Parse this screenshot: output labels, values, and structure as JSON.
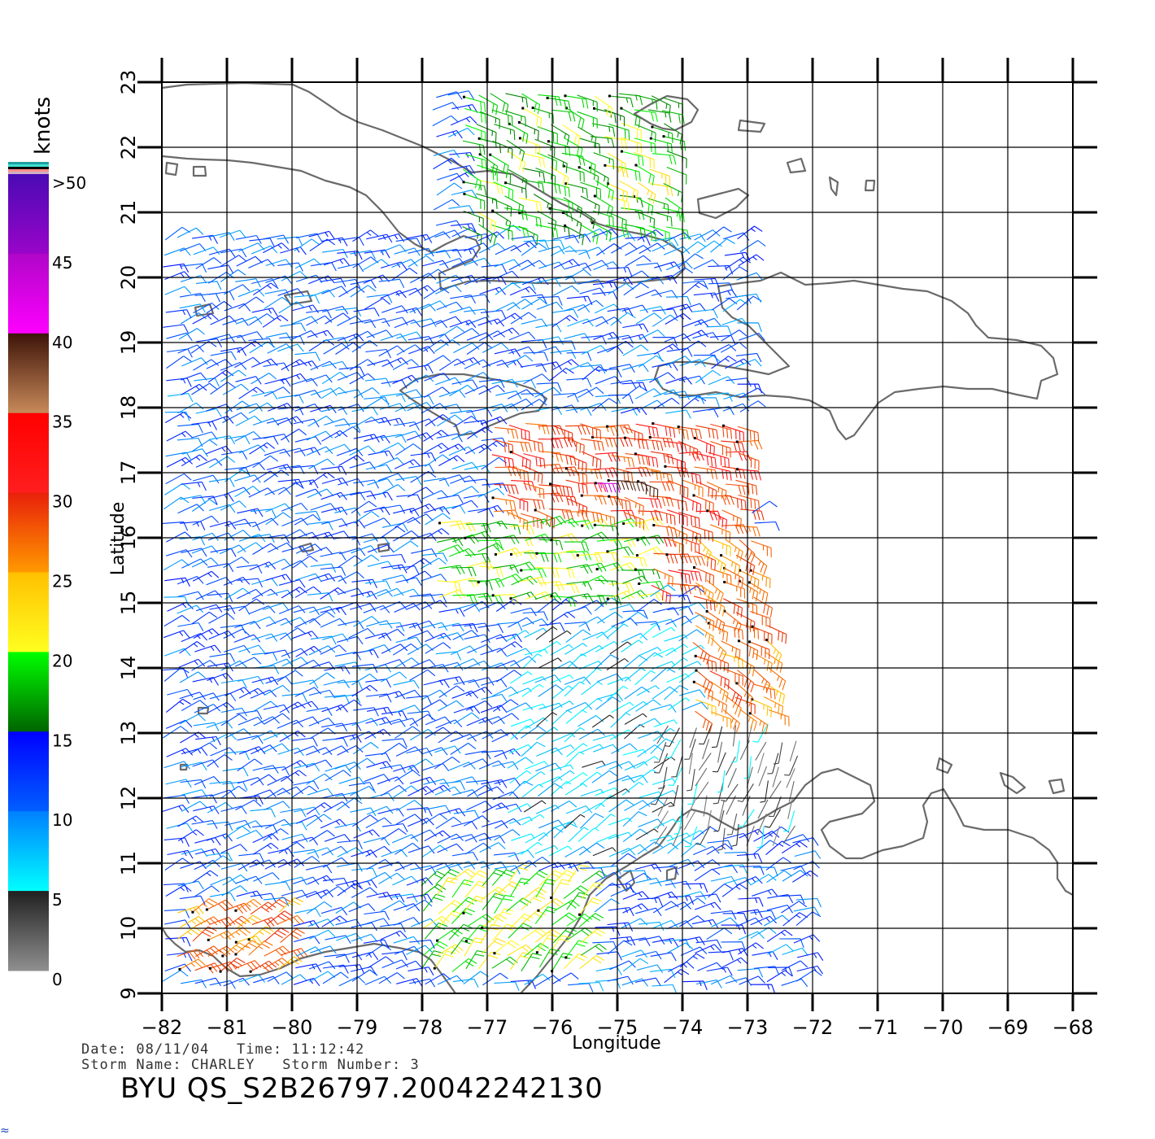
{
  "chart_data": {
    "type": "wind-barb-map",
    "xlabel": "Longitude",
    "ylabel": "Latitude",
    "xlim": [
      -82,
      -68
    ],
    "ylim": [
      9,
      23
    ],
    "x_ticks": [
      "−82",
      "−81",
      "−80",
      "−79",
      "−78",
      "−77",
      "−76",
      "−75",
      "−74",
      "−73",
      "−72",
      "−71",
      "−70",
      "−69",
      "−68"
    ],
    "y_ticks": [
      "9",
      "10",
      "11",
      "12",
      "13",
      "14",
      "15",
      "16",
      "17",
      "18",
      "19",
      "20",
      "21",
      "22",
      "23"
    ],
    "grid": true,
    "colorbar": {
      "unit": "knots",
      "labels": [
        ">50",
        "45",
        "40",
        "35",
        "30",
        "25",
        "20",
        "15",
        "10",
        "5",
        "0"
      ],
      "bands": [
        {
          "from": 45,
          "to": 50,
          "top": "#4a0ab5",
          "bottom": "#9a05c8"
        },
        {
          "from": 40,
          "to": 45,
          "top": "#b006c8",
          "bottom": "#ff00ff"
        },
        {
          "from": 35,
          "to": 40,
          "top": "#3d1408",
          "bottom": "#c98a5a"
        },
        {
          "from": 30,
          "to": 35,
          "top": "#ff0000",
          "bottom": "#ff1e1e"
        },
        {
          "from": 25,
          "to": 30,
          "top": "#e8200a",
          "bottom": "#ff9a00"
        },
        {
          "from": 20,
          "to": 25,
          "top": "#ffc000",
          "bottom": "#ffff20"
        },
        {
          "from": 15,
          "to": 20,
          "top": "#00ff00",
          "bottom": "#006400"
        },
        {
          "from": 10,
          "to": 15,
          "top": "#0000ff",
          "bottom": "#0060ff"
        },
        {
          "from": 5,
          "to": 10,
          "top": "#0080ff",
          "bottom": "#00ffff"
        },
        {
          "from": 0,
          "to": 5,
          "top": "#202020",
          "bottom": "#909090"
        }
      ],
      "top_stripes": [
        "#1fa0a0",
        "#40e0d0",
        "#000000",
        "#ff9090",
        "#d0b0c0"
      ]
    },
    "wind_regions": [
      {
        "lon": [
          -81.9,
          -76.5
        ],
        "lat": [
          9.2,
          22.8
        ],
        "speed_kt": 11,
        "dir_deg": 70
      },
      {
        "lon": [
          -77.5,
          -74.2
        ],
        "lat": [
          20.8,
          23.0
        ],
        "speed_kt": 18,
        "dir_deg": 110
      },
      {
        "lon": [
          -75.3,
          -74.3
        ],
        "lat": [
          21.3,
          22.2
        ],
        "speed_kt": 21,
        "dir_deg": 110
      },
      {
        "lon": [
          -77.0,
          -73.0
        ],
        "lat": [
          15.2,
          17.8
        ],
        "speed_kt": 29,
        "dir_deg": 100
      },
      {
        "lon": [
          -75.4,
          -74.6
        ],
        "lat": [
          16.7,
          17.0
        ],
        "speed_kt": 41,
        "dir_deg": 100
      },
      {
        "lon": [
          -77.8,
          -74.5
        ],
        "lat": [
          15.0,
          16.3
        ],
        "speed_kt": 19,
        "dir_deg": 80
      },
      {
        "lon": [
          -74.0,
          -72.4
        ],
        "lat": [
          13.0,
          16.0
        ],
        "speed_kt": 27,
        "dir_deg": 120
      },
      {
        "lon": [
          -76.8,
          -74.0
        ],
        "lat": [
          11.0,
          14.5
        ],
        "speed_kt": 7,
        "dir_deg": 60
      },
      {
        "lon": [
          -74.3,
          -72.2
        ],
        "lat": [
          11.5,
          13.2
        ],
        "speed_kt": 3,
        "dir_deg": 200
      },
      {
        "lon": [
          -78.0,
          -75.5
        ],
        "lat": [
          9.2,
          10.8
        ],
        "speed_kt": 20,
        "dir_deg": 45
      },
      {
        "lon": [
          -81.9,
          -80.0
        ],
        "lat": [
          9.2,
          10.3
        ],
        "speed_kt": 27,
        "dir_deg": 60
      }
    ]
  },
  "footer": {
    "date_line": "Date: 08/11/04   Time: 11:12:42",
    "storm_line": "Storm Name: CHARLEY   Storm Number: 3",
    "file_id": "BYU QS_S2B26797.20042242130"
  }
}
